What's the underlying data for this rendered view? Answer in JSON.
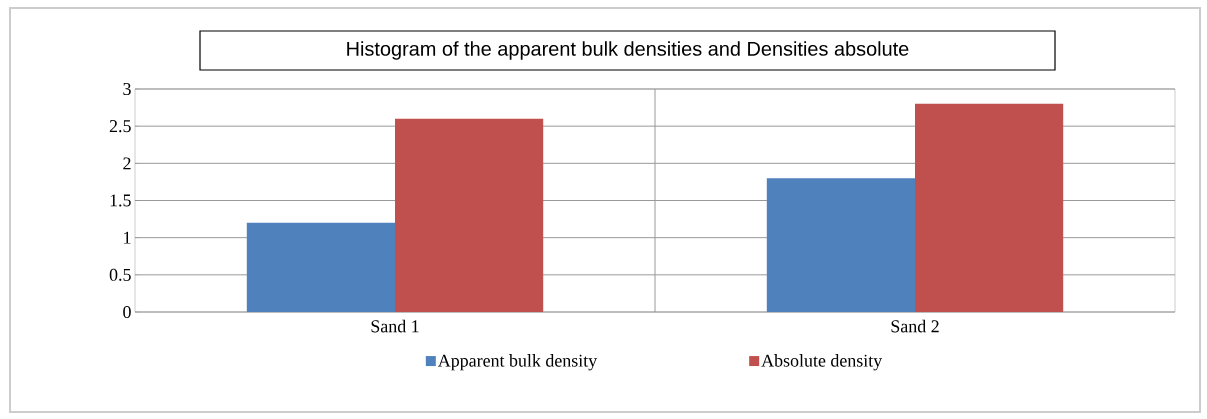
{
  "chart_data": {
    "type": "bar",
    "title": "Histogram of the apparent bulk densities and Densities absolute",
    "categories": [
      "Sand 1",
      "Sand 2"
    ],
    "series": [
      {
        "name": "Apparent bulk density",
        "color": "#4f81bd",
        "values": [
          1.2,
          1.8
        ]
      },
      {
        "name": "Absolute density",
        "color": "#c0504d",
        "values": [
          2.6,
          2.8
        ]
      }
    ],
    "ylim": [
      0,
      3
    ],
    "yticks": [
      0,
      0.5,
      1,
      1.5,
      2,
      2.5,
      3
    ],
    "grid": true,
    "legend": "bottom"
  }
}
